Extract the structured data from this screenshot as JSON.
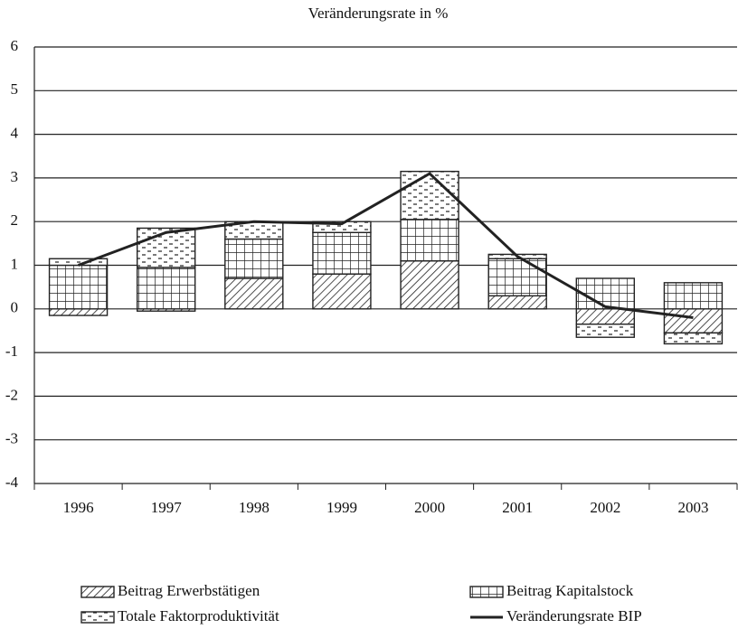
{
  "chart_data": {
    "type": "bar",
    "stacked": true,
    "title": "Veränderungsrate in %",
    "categories": [
      "1996",
      "1997",
      "1998",
      "1999",
      "2000",
      "2001",
      "2002",
      "2003"
    ],
    "series": [
      {
        "name": "Beitrag Erwerbstätigen",
        "color": "#222222",
        "pattern": "hatch",
        "values": [
          -0.15,
          -0.05,
          0.7,
          0.8,
          1.1,
          0.3,
          -0.35,
          -0.55
        ]
      },
      {
        "name": "Beitrag Kapitalstock",
        "color": "#222222",
        "pattern": "grid",
        "values": [
          1.0,
          0.95,
          0.9,
          0.95,
          0.95,
          0.85,
          0.7,
          0.6
        ]
      },
      {
        "name": "Totale Faktorproduktivität",
        "color": "#222222",
        "pattern": "dash",
        "values": [
          0.15,
          0.9,
          0.4,
          0.25,
          1.1,
          0.1,
          -0.3,
          -0.25
        ]
      },
      {
        "name": "Veränderungsrate BIP",
        "color": "#222222",
        "type": "line",
        "values": [
          1.0,
          1.75,
          2.0,
          1.95,
          3.1,
          1.2,
          0.05,
          -0.2
        ]
      }
    ],
    "ylim": [
      -4,
      6
    ],
    "yticks": [
      -4,
      -3,
      -2,
      -1,
      0,
      1,
      2,
      3,
      4,
      5,
      6
    ],
    "grid": true,
    "legend": "bottom"
  }
}
